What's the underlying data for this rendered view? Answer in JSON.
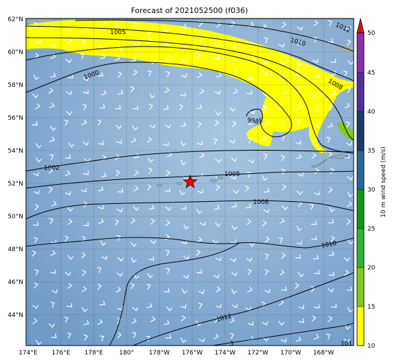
{
  "title": "Forecast of 2021052500 (f036)",
  "map": {
    "lat_labels": [
      "62°N",
      "60°N",
      "58°N",
      "56°N",
      "54°N",
      "52°N",
      "50°N",
      "48°N",
      "46°N",
      "44°N"
    ],
    "lon_labels": [
      "174°E",
      "176°E",
      "178°E",
      "180°",
      "178°W",
      "176°W",
      "174°W",
      "172°W",
      "170°W",
      "168°W"
    ],
    "contour_labels": [
      "1012",
      "1005",
      "1010",
      "1000",
      "1008",
      "998",
      "1002",
      "1005",
      "1008",
      "1010",
      "1012",
      "5",
      "101"
    ],
    "marker": "red-star"
  },
  "colorbar": {
    "label": "10 m wind speed (m/s)",
    "ticks": [
      "10",
      "15",
      "20",
      "25",
      "30",
      "35",
      "40",
      "45",
      "50"
    ],
    "colors": [
      "#ffff00",
      "#80cc1a",
      "#33b233",
      "#119911",
      "#2a6699",
      "#1a3a6a",
      "#552d99",
      "#8833aa",
      "#aa44cc"
    ],
    "extend_color": "#dd1111"
  },
  "colors": {
    "ocean": "#86add2",
    "land": "#9cb0b0",
    "contour": "#000000"
  }
}
